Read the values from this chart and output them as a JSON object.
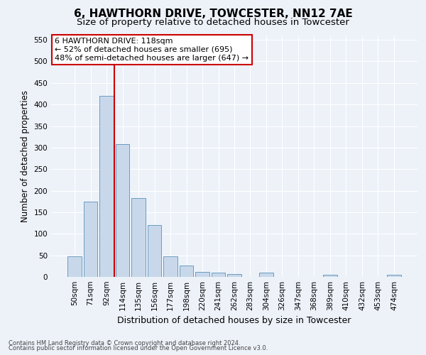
{
  "title": "6, HAWTHORN DRIVE, TOWCESTER, NN12 7AE",
  "subtitle": "Size of property relative to detached houses in Towcester",
  "xlabel": "Distribution of detached houses by size in Towcester",
  "ylabel": "Number of detached properties",
  "categories": [
    "50sqm",
    "71sqm",
    "92sqm",
    "114sqm",
    "135sqm",
    "156sqm",
    "177sqm",
    "198sqm",
    "220sqm",
    "241sqm",
    "262sqm",
    "283sqm",
    "304sqm",
    "326sqm",
    "347sqm",
    "368sqm",
    "389sqm",
    "410sqm",
    "432sqm",
    "453sqm",
    "474sqm"
  ],
  "values": [
    47,
    175,
    420,
    308,
    183,
    120,
    47,
    27,
    12,
    10,
    7,
    0,
    10,
    0,
    0,
    0,
    5,
    0,
    0,
    0,
    5
  ],
  "bar_color": "#c8d8ea",
  "bar_edge_color": "#6a9cc0",
  "vline_pos": 2.5,
  "vline_color": "#cc0000",
  "ylim": [
    0,
    560
  ],
  "yticks": [
    0,
    50,
    100,
    150,
    200,
    250,
    300,
    350,
    400,
    450,
    500,
    550
  ],
  "annotation_text": "6 HAWTHORN DRIVE: 118sqm\n← 52% of detached houses are smaller (695)\n48% of semi-detached houses are larger (647) →",
  "annotation_box_facecolor": "#ffffff",
  "annotation_box_edgecolor": "#cc0000",
  "footer_line1": "Contains HM Land Registry data © Crown copyright and database right 2024.",
  "footer_line2": "Contains public sector information licensed under the Open Government Licence v3.0.",
  "background_color": "#edf2f9",
  "grid_color": "#ffffff",
  "title_fontsize": 11,
  "subtitle_fontsize": 9.5,
  "tick_fontsize": 7.5,
  "ylabel_fontsize": 8.5,
  "xlabel_fontsize": 9,
  "annotation_fontsize": 8,
  "footer_fontsize": 6
}
